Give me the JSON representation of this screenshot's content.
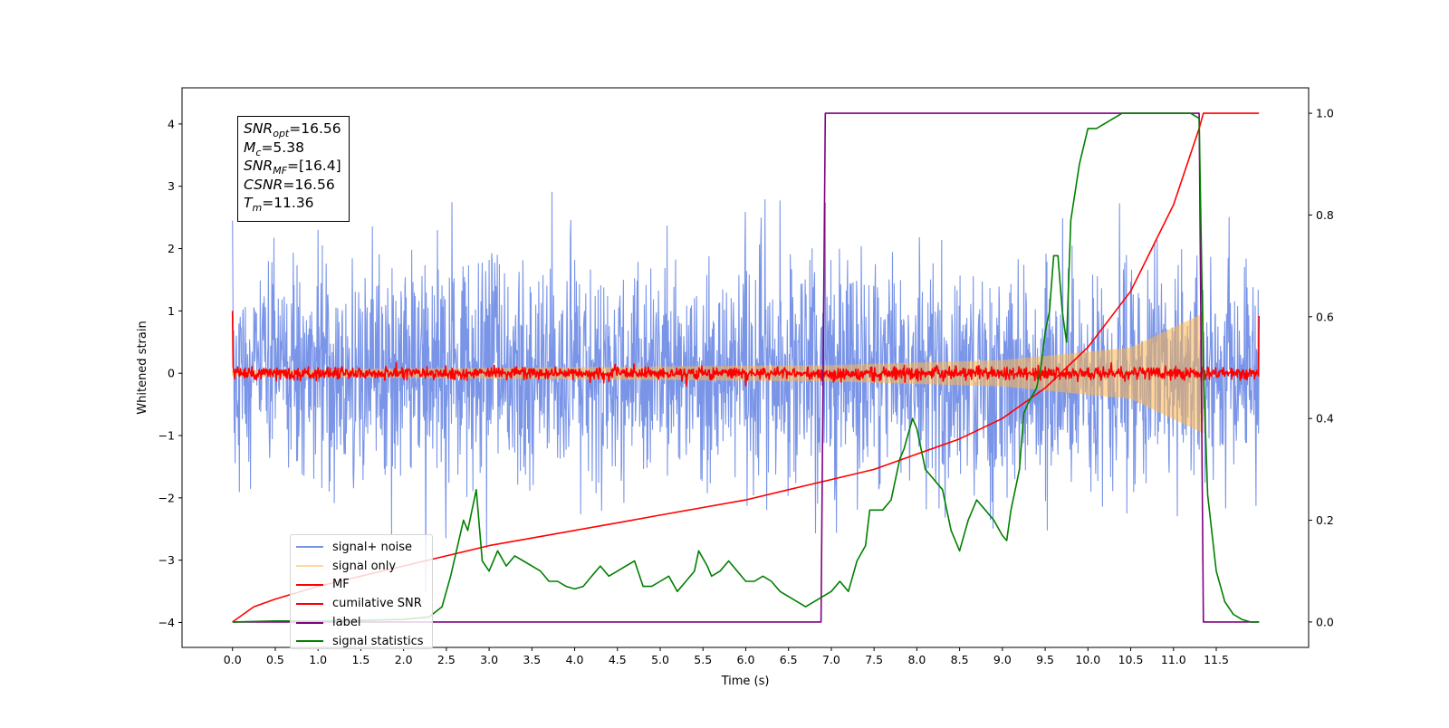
{
  "chart_data": {
    "type": "line",
    "xlabel": "Time (s)",
    "ylabel": "Whitened strain",
    "xlim": [
      -0.59,
      12.58
    ],
    "ylim": [
      -4.4,
      4.58
    ],
    "y2lim": [
      -0.05,
      1.05
    ],
    "x_ticks": [
      0.0,
      0.5,
      1.0,
      1.5,
      2.0,
      2.5,
      3.0,
      3.5,
      4.0,
      4.5,
      5.0,
      5.5,
      6.0,
      6.5,
      7.0,
      7.5,
      8.0,
      8.5,
      9.0,
      9.5,
      10.0,
      10.5,
      11.0,
      11.5
    ],
    "x_tick_labels": [
      "0.0",
      "0.5",
      "1.0",
      "1.5",
      "2.0",
      "2.5",
      "3.0",
      "3.5",
      "4.0",
      "4.5",
      "5.0",
      "5.5",
      "6.0",
      "6.5",
      "7.0",
      "7.5",
      "8.0",
      "8.5",
      "9.0",
      "9.5",
      "10.0",
      "10.5",
      "11.0",
      "11.5"
    ],
    "y_ticks": [
      -4,
      -3,
      -2,
      -1,
      0,
      1,
      2,
      3,
      4
    ],
    "y_tick_labels": [
      "−4",
      "−3",
      "−2",
      "−1",
      "0",
      "1",
      "2",
      "3",
      "4"
    ],
    "y2_ticks": [
      0.0,
      0.2,
      0.4,
      0.6,
      0.8,
      1.0
    ],
    "y2_tick_labels": [
      "0.0",
      "0.2",
      "0.4",
      "0.6",
      "0.8",
      "1.0"
    ],
    "grid": false,
    "legend_position": "lower-left",
    "series": [
      {
        "name": "signal+ noise",
        "axis": "left",
        "color": "#6b89e6",
        "opacity": 0.9,
        "style": "noise",
        "x_range": [
          0.0,
          12.0
        ],
        "envelope_std": 0.88,
        "typical_max": 2.5,
        "max_peak": 4.2,
        "min_trough": -3.95
      },
      {
        "name": "signal only",
        "axis": "left",
        "color": "#ffb74d",
        "opacity": 0.55,
        "style": "chirp",
        "x_range": [
          0.0,
          11.35
        ],
        "amplitude_start": 0.04,
        "amplitude_at_x": [
          [
            0.0,
            0.04
          ],
          [
            7.0,
            0.12
          ],
          [
            9.0,
            0.2
          ],
          [
            10.5,
            0.4
          ],
          [
            11.35,
            0.95
          ]
        ]
      },
      {
        "name": "MF",
        "axis": "left",
        "color": "#ff0000",
        "style": "noise",
        "x_range": [
          0.0,
          12.0
        ],
        "envelope_std": 0.05,
        "start_value": 1.0,
        "end_value": 0.92
      },
      {
        "name": "cumilative SNR",
        "axis": "right",
        "color": "#ff0000",
        "style": "line",
        "x": [
          0.0,
          0.25,
          0.5,
          1.0,
          1.5,
          2.0,
          2.5,
          3.0,
          3.5,
          4.0,
          4.5,
          5.0,
          5.5,
          6.0,
          6.5,
          7.0,
          7.5,
          8.0,
          8.5,
          9.0,
          9.5,
          10.0,
          10.5,
          11.0,
          11.3,
          11.35,
          12.0
        ],
        "y": [
          0.0,
          0.03,
          0.045,
          0.07,
          0.09,
          0.11,
          0.13,
          0.15,
          0.165,
          0.18,
          0.195,
          0.21,
          0.225,
          0.24,
          0.26,
          0.28,
          0.3,
          0.33,
          0.36,
          0.4,
          0.46,
          0.54,
          0.65,
          0.82,
          0.97,
          1.0,
          1.0
        ]
      },
      {
        "name": "label",
        "axis": "right",
        "color": "#800080",
        "style": "step",
        "x": [
          0.0,
          6.88,
          6.93,
          11.3,
          11.35,
          12.0
        ],
        "y": [
          0.0,
          0.0,
          1.0,
          1.0,
          0.0,
          0.0
        ]
      },
      {
        "name": "signal statistics",
        "axis": "right",
        "color": "#008000",
        "style": "line",
        "x": [
          0.0,
          0.5,
          1.0,
          1.5,
          2.0,
          2.3,
          2.45,
          2.55,
          2.7,
          2.75,
          2.85,
          2.92,
          3.0,
          3.1,
          3.2,
          3.3,
          3.4,
          3.5,
          3.6,
          3.7,
          3.8,
          3.9,
          4.0,
          4.1,
          4.2,
          4.3,
          4.4,
          4.5,
          4.6,
          4.7,
          4.8,
          4.9,
          5.0,
          5.1,
          5.2,
          5.3,
          5.4,
          5.45,
          5.55,
          5.6,
          5.7,
          5.8,
          5.9,
          6.0,
          6.1,
          6.2,
          6.3,
          6.4,
          6.5,
          6.6,
          6.7,
          6.8,
          6.9,
          7.0,
          7.1,
          7.2,
          7.3,
          7.4,
          7.45,
          7.5,
          7.6,
          7.7,
          7.8,
          7.85,
          7.9,
          7.95,
          8.0,
          8.1,
          8.2,
          8.3,
          8.4,
          8.5,
          8.6,
          8.7,
          8.8,
          8.9,
          9.0,
          9.05,
          9.1,
          9.2,
          9.25,
          9.3,
          9.4,
          9.45,
          9.5,
          9.55,
          9.6,
          9.65,
          9.7,
          9.75,
          9.8,
          9.9,
          10.0,
          10.1,
          10.2,
          10.3,
          10.4,
          10.5,
          10.6,
          10.7,
          10.8,
          10.9,
          11.0,
          11.1,
          11.2,
          11.3,
          11.35,
          11.4,
          11.5,
          11.6,
          11.7,
          11.8,
          11.9,
          12.0
        ],
        "y": [
          0.0,
          0.002,
          0.002,
          0.003,
          0.005,
          0.01,
          0.03,
          0.09,
          0.2,
          0.18,
          0.26,
          0.12,
          0.1,
          0.14,
          0.11,
          0.13,
          0.12,
          0.11,
          0.1,
          0.08,
          0.08,
          0.07,
          0.065,
          0.07,
          0.09,
          0.11,
          0.09,
          0.1,
          0.11,
          0.12,
          0.07,
          0.07,
          0.08,
          0.09,
          0.06,
          0.08,
          0.1,
          0.14,
          0.11,
          0.09,
          0.1,
          0.12,
          0.1,
          0.08,
          0.08,
          0.09,
          0.08,
          0.06,
          0.05,
          0.04,
          0.03,
          0.04,
          0.05,
          0.06,
          0.08,
          0.06,
          0.12,
          0.15,
          0.22,
          0.22,
          0.22,
          0.24,
          0.32,
          0.34,
          0.37,
          0.4,
          0.38,
          0.3,
          0.28,
          0.26,
          0.18,
          0.14,
          0.2,
          0.24,
          0.22,
          0.2,
          0.17,
          0.16,
          0.22,
          0.3,
          0.41,
          0.43,
          0.46,
          0.5,
          0.57,
          0.61,
          0.72,
          0.72,
          0.61,
          0.55,
          0.79,
          0.9,
          0.97,
          0.97,
          0.98,
          0.99,
          1.0,
          1.0,
          1.0,
          1.0,
          1.0,
          1.0,
          1.0,
          1.0,
          1.0,
          0.99,
          0.5,
          0.25,
          0.1,
          0.04,
          0.015,
          0.005,
          0.0,
          0.0
        ]
      }
    ],
    "annotations": [
      {
        "label": "SNR",
        "sub": "opt",
        "value": "=16.56"
      },
      {
        "label": "M",
        "sub": "c",
        "value": "=5.38"
      },
      {
        "label": "SNR",
        "sub": "MF",
        "value": "=[16.4]"
      },
      {
        "label": "CSNR",
        "sub": "",
        "value": "=16.56"
      },
      {
        "label": "T",
        "sub": "m",
        "value": "=11.36"
      }
    ]
  }
}
